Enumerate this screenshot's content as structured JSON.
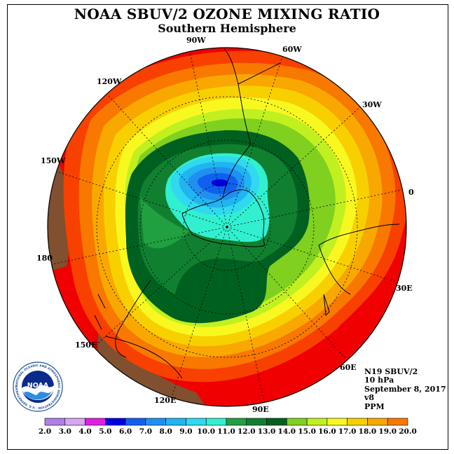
{
  "title": "NOAA SBUV/2 OZONE MIXING RATIO",
  "subtitle": "Southern Hemisphere",
  "longitude_labels": [
    "90W",
    "60W",
    "30W",
    "0",
    "30E",
    "60E",
    "90E",
    "120E",
    "150E",
    "180",
    "150W",
    "120W"
  ],
  "info": {
    "satellite": "N19 SBUV/2",
    "level": "10 hPa",
    "date": "September 8, 2017",
    "version": "v8",
    "units": "PPM"
  },
  "logo": {
    "text": "NOAA",
    "ring_text": "NATIONAL OCEANIC AND ATMOSPHERIC ADMINISTRATION · U.S. DEPARTMENT OF COMMERCE"
  },
  "colorbar": {
    "labels": [
      "2.0",
      "3.0",
      "4.0",
      "5.0",
      "6.0",
      "7.0",
      "8.0",
      "9.0",
      "10.0",
      "11.0",
      "12.0",
      "13.0",
      "14.0",
      "15.0",
      "16.0",
      "17.0",
      "18.0",
      "19.0",
      "20.0"
    ],
    "colors": [
      "#b07ee8",
      "#d9a6f2",
      "#e020e0",
      "#0000e0",
      "#1060f0",
      "#2090f0",
      "#20b4f0",
      "#30d8f0",
      "#30f0d0",
      "#20a040",
      "#108030",
      "#006020",
      "#80d020",
      "#c0f020",
      "#f8f820",
      "#f8d000",
      "#f8a800",
      "#f87800",
      "#f84000",
      "#f00000",
      "#805030"
    ]
  },
  "colors": {
    "land_outline": "#000000",
    "above_max": "#805030"
  }
}
